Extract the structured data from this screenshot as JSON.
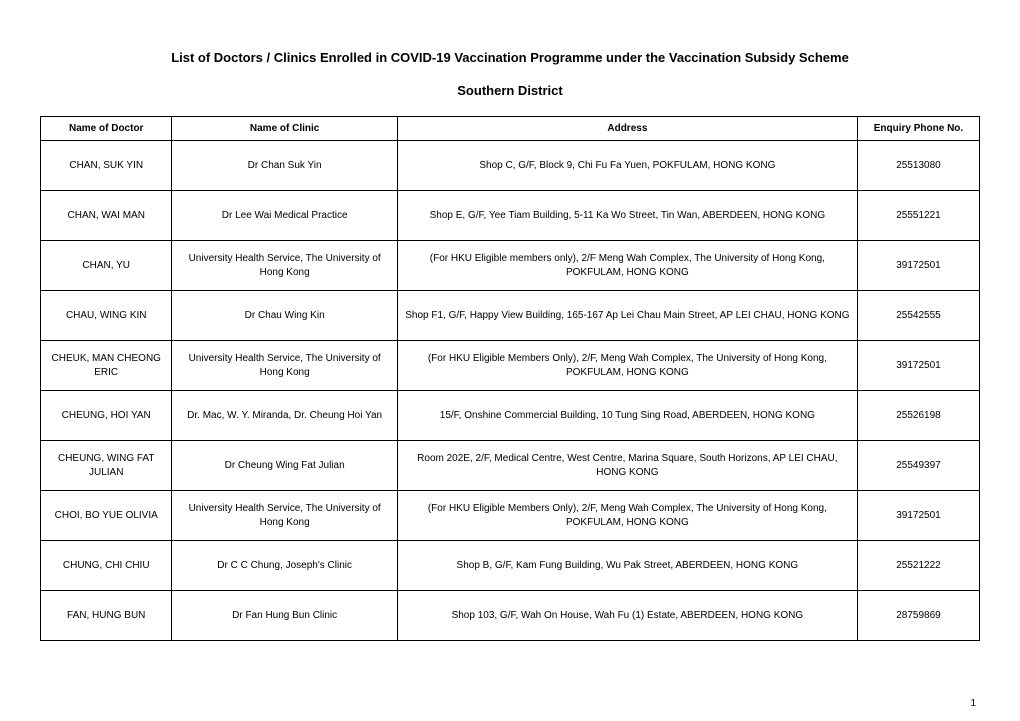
{
  "title": "List of Doctors / Clinics Enrolled in COVID-19 Vaccination Programme under the Vaccination Subsidy Scheme",
  "subtitle": "Southern District",
  "columns": [
    "Name of Doctor",
    "Name of Clinic",
    "Address",
    "Enquiry Phone No."
  ],
  "rows": [
    [
      "CHAN, SUK YIN",
      "Dr Chan Suk Yin",
      "Shop C, G/F, Block 9, Chi Fu Fa Yuen, POKFULAM, HONG KONG",
      "25513080"
    ],
    [
      "CHAN, WAI MAN",
      "Dr Lee Wai Medical Practice",
      "Shop E, G/F, Yee Tiam Building, 5-11 Ka Wo Street, Tin Wan, ABERDEEN, HONG KONG",
      "25551221"
    ],
    [
      "CHAN, YU",
      "University Health Service, The University of Hong Kong",
      "(For HKU Eligible members only), 2/F Meng Wah Complex, The University of Hong Kong, POKFULAM, HONG KONG",
      "39172501"
    ],
    [
      "CHAU, WING KIN",
      "Dr Chau Wing Kin",
      "Shop F1, G/F, Happy View Building, 165-167 Ap Lei Chau Main Street, AP LEI CHAU, HONG KONG",
      "25542555"
    ],
    [
      "CHEUK, MAN CHEONG ERIC",
      "University Health Service, The University of Hong Kong",
      "(For HKU Eligible Members Only), 2/F, Meng Wah Complex, The University of Hong Kong, POKFULAM, HONG KONG",
      "39172501"
    ],
    [
      "CHEUNG, HOI YAN",
      "Dr. Mac, W. Y. Miranda, Dr. Cheung Hoi Yan",
      "15/F, Onshine Commercial Building, 10 Tung Sing Road, ABERDEEN, HONG KONG",
      "25526198"
    ],
    [
      "CHEUNG, WING FAT JULIAN",
      "Dr Cheung Wing Fat Julian",
      "Room 202E, 2/F, Medical Centre, West Centre, Marina Square, South Horizons, AP LEI CHAU, HONG KONG",
      "25549397"
    ],
    [
      "CHOI, BO YUE OLIVIA",
      "University Health Service, The University of Hong Kong",
      "(For HKU Eligible Members Only), 2/F, Meng Wah Complex, The University of Hong Kong, POKFULAM, HONG KONG",
      "39172501"
    ],
    [
      "CHUNG, CHI CHIU",
      "Dr C C Chung, Joseph's Clinic",
      "Shop B, G/F, Kam Fung Building, Wu Pak Street, ABERDEEN, HONG KONG",
      "25521222"
    ],
    [
      "FAN, HUNG BUN",
      "Dr Fan Hung Bun Clinic",
      "Shop 103, G/F, Wah On House, Wah Fu (1) Estate, ABERDEEN, HONG KONG",
      "28759869"
    ]
  ],
  "page_number": "1"
}
